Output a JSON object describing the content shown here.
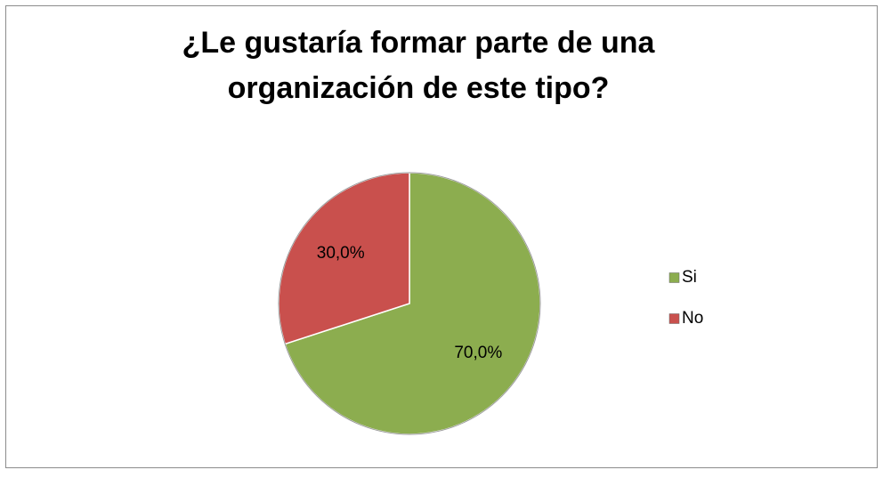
{
  "chart_data": {
    "type": "pie",
    "title": [
      "¿Le gustaría formar parte de una",
      "organización de este tipo?"
    ],
    "categories": [
      "Si",
      "No"
    ],
    "values": [
      70,
      30
    ],
    "value_labels": [
      "70,0%",
      "30,0%"
    ],
    "colors": [
      "#8cad4f",
      "#c9504d"
    ],
    "legend": "right"
  }
}
